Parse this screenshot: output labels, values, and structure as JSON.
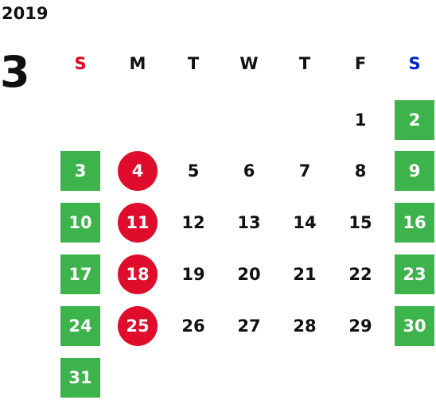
{
  "calendar": {
    "year": "2019",
    "month": "3",
    "weekdays": [
      "S",
      "M",
      "T",
      "W",
      "T",
      "F",
      "S"
    ],
    "weekday_colors": [
      "#e8001c",
      "#111111",
      "#111111",
      "#111111",
      "#111111",
      "#111111",
      "#0022cc"
    ],
    "holiday_color": "#e00c2c",
    "weekend_color": "#3cb44b",
    "first_weekday_index": 5,
    "days_in_month": 31,
    "holidays": [
      4,
      11,
      18,
      25
    ]
  }
}
